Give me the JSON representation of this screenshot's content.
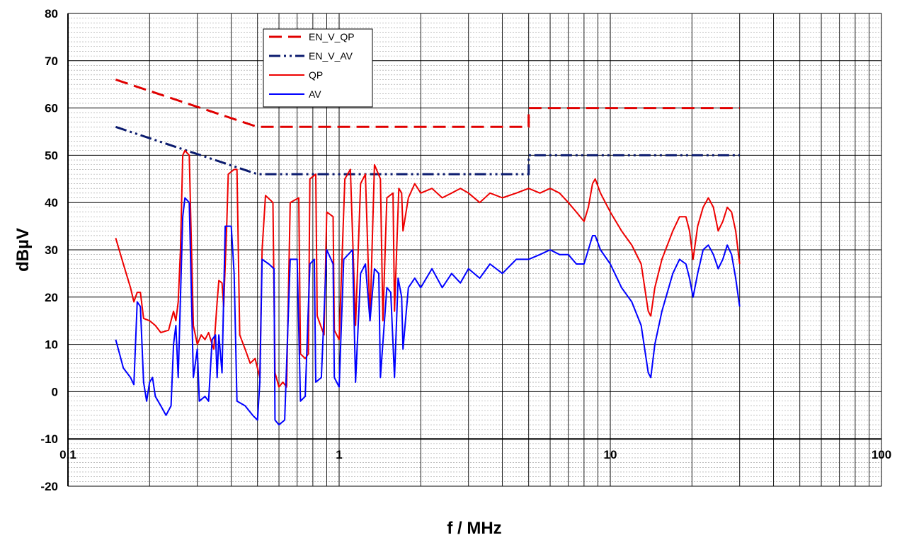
{
  "chart_data": {
    "type": "line",
    "title": "",
    "xlabel": "f / MHz",
    "ylabel": "dBµV",
    "x_scale": "log",
    "xlim": [
      0.1,
      100
    ],
    "ylim": [
      -20,
      80
    ],
    "x_ticks": [
      "0.1",
      "1",
      "10",
      "100"
    ],
    "y_ticks": [
      "80",
      "70",
      "60",
      "50",
      "40",
      "30",
      "20",
      "10",
      "0",
      "-10",
      "-20"
    ],
    "grid": true,
    "legend_position": "top-left",
    "series": [
      {
        "name": "EN_V_QP",
        "color": "#e00000",
        "style": "dashed",
        "points": [
          [
            0.15,
            66
          ],
          [
            0.5,
            56
          ],
          [
            5,
            56
          ],
          [
            5,
            60
          ],
          [
            30,
            60
          ]
        ]
      },
      {
        "name": "EN_V_AV",
        "color": "#0a1a6e",
        "style": "dash-dot-dot",
        "points": [
          [
            0.15,
            56
          ],
          [
            0.5,
            46
          ],
          [
            5,
            46
          ],
          [
            5,
            50
          ],
          [
            30,
            50
          ]
        ]
      },
      {
        "name": "QP",
        "color": "#ee0000",
        "style": "solid",
        "points": [
          [
            0.15,
            32.5
          ],
          [
            0.16,
            27
          ],
          [
            0.17,
            22
          ],
          [
            0.175,
            19
          ],
          [
            0.18,
            21
          ],
          [
            0.185,
            21
          ],
          [
            0.19,
            15.5
          ],
          [
            0.2,
            15
          ],
          [
            0.21,
            14
          ],
          [
            0.22,
            12.5
          ],
          [
            0.235,
            13
          ],
          [
            0.245,
            17
          ],
          [
            0.25,
            15
          ],
          [
            0.255,
            19
          ],
          [
            0.26,
            30
          ],
          [
            0.265,
            50
          ],
          [
            0.27,
            51
          ],
          [
            0.28,
            50
          ],
          [
            0.29,
            14
          ],
          [
            0.3,
            10
          ],
          [
            0.31,
            12
          ],
          [
            0.32,
            11
          ],
          [
            0.33,
            12.5
          ],
          [
            0.34,
            10
          ],
          [
            0.345,
            9
          ],
          [
            0.355,
            19
          ],
          [
            0.36,
            23.5
          ],
          [
            0.37,
            23
          ],
          [
            0.375,
            18
          ],
          [
            0.385,
            35
          ],
          [
            0.39,
            46
          ],
          [
            0.41,
            47
          ],
          [
            0.42,
            47
          ],
          [
            0.43,
            12
          ],
          [
            0.45,
            9
          ],
          [
            0.47,
            6
          ],
          [
            0.49,
            7
          ],
          [
            0.51,
            3
          ],
          [
            0.52,
            30
          ],
          [
            0.535,
            41.5
          ],
          [
            0.57,
            40
          ],
          [
            0.58,
            4
          ],
          [
            0.6,
            1
          ],
          [
            0.62,
            2
          ],
          [
            0.64,
            1
          ],
          [
            0.66,
            40
          ],
          [
            0.71,
            41
          ],
          [
            0.72,
            8
          ],
          [
            0.75,
            7
          ],
          [
            0.77,
            8
          ],
          [
            0.78,
            45
          ],
          [
            0.82,
            46
          ],
          [
            0.83,
            16
          ],
          [
            0.88,
            12
          ],
          [
            0.9,
            38
          ],
          [
            0.95,
            37
          ],
          [
            0.96,
            13
          ],
          [
            1.0,
            11
          ],
          [
            1.05,
            45
          ],
          [
            1.1,
            47
          ],
          [
            1.15,
            14
          ],
          [
            1.2,
            44
          ],
          [
            1.25,
            46
          ],
          [
            1.3,
            15
          ],
          [
            1.35,
            48
          ],
          [
            1.42,
            45
          ],
          [
            1.45,
            15
          ],
          [
            1.5,
            41
          ],
          [
            1.58,
            42
          ],
          [
            1.6,
            17
          ],
          [
            1.66,
            43
          ],
          [
            1.7,
            42
          ],
          [
            1.72,
            34
          ],
          [
            1.8,
            41
          ],
          [
            1.9,
            44
          ],
          [
            2.0,
            42
          ],
          [
            2.2,
            43
          ],
          [
            2.4,
            41
          ],
          [
            2.6,
            42
          ],
          [
            2.8,
            43
          ],
          [
            3.0,
            42
          ],
          [
            3.3,
            40
          ],
          [
            3.6,
            42
          ],
          [
            4.0,
            41
          ],
          [
            4.5,
            42
          ],
          [
            5.0,
            43
          ],
          [
            5.5,
            42
          ],
          [
            6.0,
            43
          ],
          [
            6.5,
            42
          ],
          [
            7.0,
            40
          ],
          [
            7.5,
            38
          ],
          [
            8.0,
            36
          ],
          [
            8.3,
            39
          ],
          [
            8.6,
            44
          ],
          [
            8.8,
            45
          ],
          [
            9.2,
            42
          ],
          [
            10,
            38
          ],
          [
            11,
            34
          ],
          [
            12,
            31
          ],
          [
            13,
            27
          ],
          [
            13.8,
            17
          ],
          [
            14.1,
            16
          ],
          [
            14.6,
            22
          ],
          [
            15.5,
            28
          ],
          [
            17,
            34
          ],
          [
            18,
            37
          ],
          [
            19,
            37
          ],
          [
            19.6,
            34
          ],
          [
            20.2,
            28
          ],
          [
            21,
            35
          ],
          [
            22,
            39
          ],
          [
            23,
            41
          ],
          [
            24,
            39
          ],
          [
            25,
            34
          ],
          [
            26,
            36
          ],
          [
            27,
            39
          ],
          [
            28,
            38
          ],
          [
            29,
            34
          ],
          [
            30,
            27
          ]
        ]
      },
      {
        "name": "AV",
        "color": "#0000ff",
        "style": "solid",
        "points": [
          [
            0.15,
            11
          ],
          [
            0.155,
            8
          ],
          [
            0.16,
            5
          ],
          [
            0.165,
            4
          ],
          [
            0.17,
            3
          ],
          [
            0.175,
            1.5
          ],
          [
            0.18,
            19
          ],
          [
            0.185,
            18
          ],
          [
            0.19,
            2
          ],
          [
            0.195,
            -2
          ],
          [
            0.2,
            2
          ],
          [
            0.205,
            3
          ],
          [
            0.21,
            -1
          ],
          [
            0.22,
            -3
          ],
          [
            0.23,
            -5
          ],
          [
            0.24,
            -3
          ],
          [
            0.245,
            10
          ],
          [
            0.25,
            14
          ],
          [
            0.255,
            3
          ],
          [
            0.26,
            20
          ],
          [
            0.265,
            37
          ],
          [
            0.27,
            41
          ],
          [
            0.28,
            40
          ],
          [
            0.29,
            3
          ],
          [
            0.3,
            9
          ],
          [
            0.305,
            -2
          ],
          [
            0.32,
            -1
          ],
          [
            0.33,
            -2
          ],
          [
            0.34,
            11
          ],
          [
            0.35,
            12
          ],
          [
            0.355,
            3
          ],
          [
            0.36,
            12
          ],
          [
            0.37,
            4
          ],
          [
            0.38,
            35
          ],
          [
            0.4,
            35
          ],
          [
            0.41,
            25
          ],
          [
            0.42,
            -2
          ],
          [
            0.45,
            -3
          ],
          [
            0.48,
            -5
          ],
          [
            0.5,
            -6
          ],
          [
            0.51,
            2
          ],
          [
            0.52,
            28
          ],
          [
            0.55,
            27
          ],
          [
            0.575,
            26
          ],
          [
            0.58,
            -6
          ],
          [
            0.6,
            -7
          ],
          [
            0.63,
            -6
          ],
          [
            0.66,
            28
          ],
          [
            0.7,
            28
          ],
          [
            0.72,
            -2
          ],
          [
            0.75,
            -1
          ],
          [
            0.78,
            27
          ],
          [
            0.81,
            28
          ],
          [
            0.82,
            2
          ],
          [
            0.86,
            3
          ],
          [
            0.9,
            30
          ],
          [
            0.95,
            27
          ],
          [
            0.96,
            3
          ],
          [
            1.0,
            1
          ],
          [
            1.04,
            28
          ],
          [
            1.12,
            30
          ],
          [
            1.15,
            2
          ],
          [
            1.2,
            25
          ],
          [
            1.25,
            27
          ],
          [
            1.3,
            15
          ],
          [
            1.35,
            26
          ],
          [
            1.4,
            25
          ],
          [
            1.42,
            3
          ],
          [
            1.5,
            22
          ],
          [
            1.55,
            21
          ],
          [
            1.6,
            3
          ],
          [
            1.65,
            24
          ],
          [
            1.7,
            20
          ],
          [
            1.72,
            9
          ],
          [
            1.8,
            22
          ],
          [
            1.9,
            24
          ],
          [
            2.0,
            22
          ],
          [
            2.2,
            26
          ],
          [
            2.4,
            22
          ],
          [
            2.6,
            25
          ],
          [
            2.8,
            23
          ],
          [
            3.0,
            26
          ],
          [
            3.3,
            24
          ],
          [
            3.6,
            27
          ],
          [
            4.0,
            25
          ],
          [
            4.5,
            28
          ],
          [
            5.0,
            28
          ],
          [
            5.5,
            29
          ],
          [
            6.0,
            30
          ],
          [
            6.5,
            29
          ],
          [
            7.0,
            29
          ],
          [
            7.5,
            27
          ],
          [
            8.0,
            27
          ],
          [
            8.3,
            30
          ],
          [
            8.6,
            33
          ],
          [
            8.8,
            33
          ],
          [
            9.2,
            30
          ],
          [
            10,
            27
          ],
          [
            11,
            22
          ],
          [
            12,
            19
          ],
          [
            13,
            14
          ],
          [
            13.8,
            4
          ],
          [
            14.1,
            3
          ],
          [
            14.6,
            10
          ],
          [
            15.5,
            17
          ],
          [
            17,
            25
          ],
          [
            18,
            28
          ],
          [
            19,
            27
          ],
          [
            19.6,
            24
          ],
          [
            20.2,
            20
          ],
          [
            21,
            25
          ],
          [
            22,
            30
          ],
          [
            23,
            31
          ],
          [
            24,
            29
          ],
          [
            25,
            26
          ],
          [
            26,
            28
          ],
          [
            27,
            31
          ],
          [
            28,
            29
          ],
          [
            29,
            24
          ],
          [
            30,
            18
          ]
        ]
      }
    ]
  }
}
